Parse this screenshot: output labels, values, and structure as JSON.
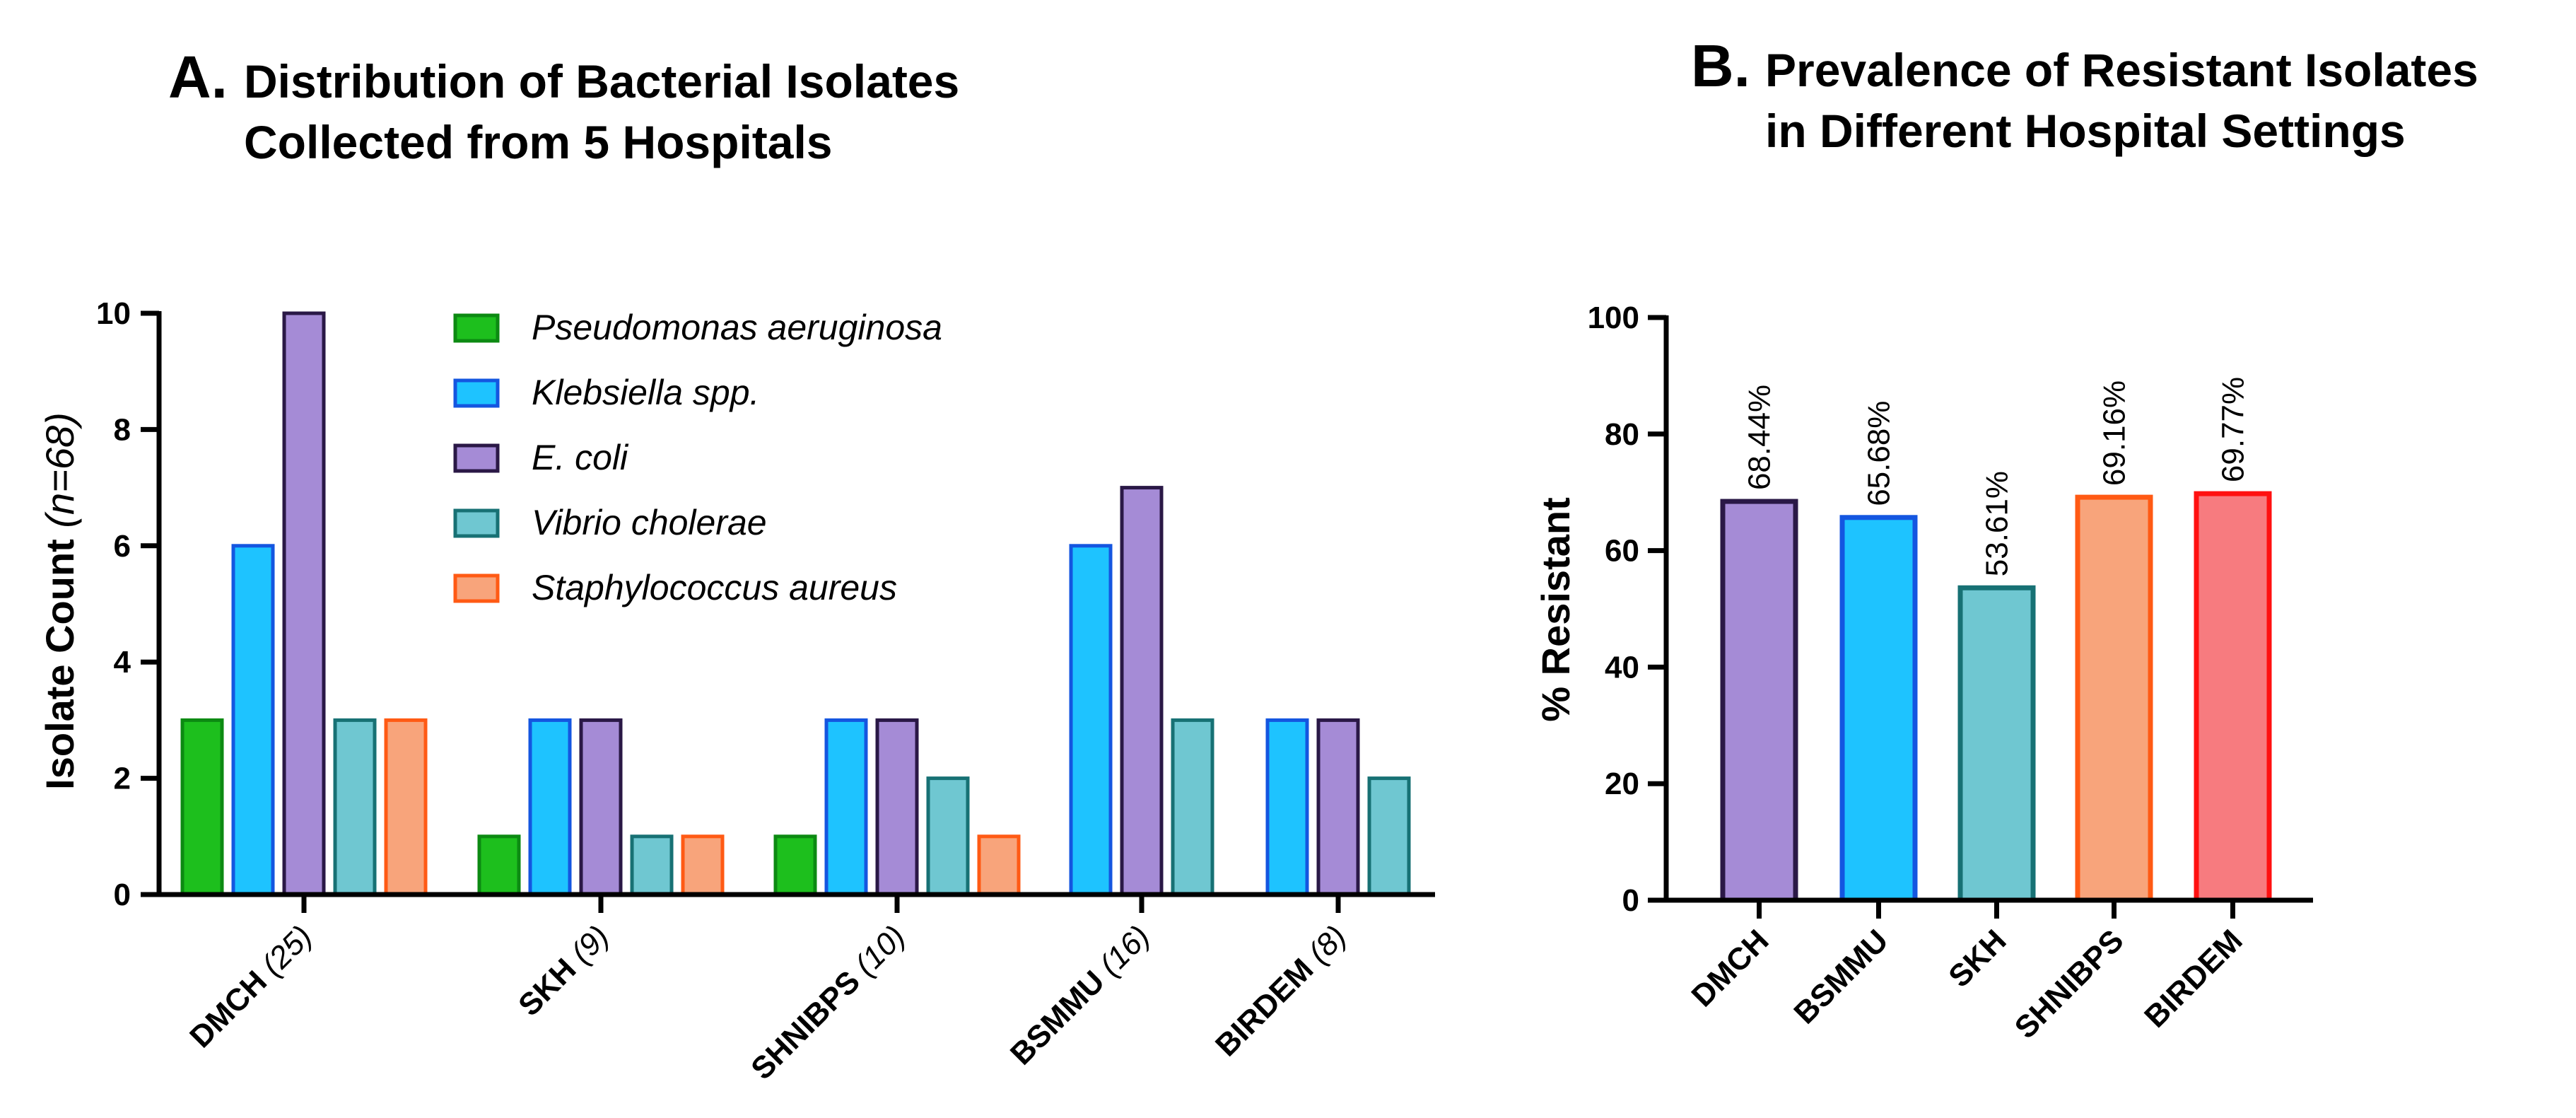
{
  "colors": {
    "Pseudomonas aeruginosa": {
      "fill": "#1dbf1d",
      "stroke": "#0c8a12"
    },
    "Klebsiella spp.": {
      "fill": "#1ec3ff",
      "stroke": "#1456e0"
    },
    "E. coli": {
      "fill": "#a58bd6",
      "stroke": "#2a1846"
    },
    "Vibrio cholerae": {
      "fill": "#6fc7d1",
      "stroke": "#177174"
    },
    "Staphylococcus aureus": {
      "fill": "#f8a47b",
      "stroke": "#ff5a14"
    }
  },
  "chart_data": [
    {
      "type": "bar",
      "panel_letter": "A.",
      "title_line1": "Distribution of Bacterial Isolates",
      "title_line2": "Collected from 5 Hospitals",
      "xlabel": "",
      "ylabel": "Isolate Count",
      "ylabel_n": "(n=68)",
      "ylim": [
        0,
        10
      ],
      "yticks": [
        0,
        2,
        4,
        6,
        8,
        10
      ],
      "categories": [
        {
          "name": "DMCH",
          "n": "(25)"
        },
        {
          "name": "SKH",
          "n": "(9)"
        },
        {
          "name": "SHNIBPS",
          "n": "(10)"
        },
        {
          "name": "BSMMU",
          "n": "(16)"
        },
        {
          "name": "BIRDEM",
          "n": "(8)"
        }
      ],
      "legend_position": "top-center",
      "series": [
        {
          "name": "Pseudomonas aeruginosa",
          "values": [
            3,
            1,
            1,
            0,
            0
          ]
        },
        {
          "name": "Klebsiella spp.",
          "values": [
            6,
            3,
            3,
            6,
            3
          ]
        },
        {
          "name": "E. coli",
          "values": [
            10,
            3,
            3,
            7,
            3
          ]
        },
        {
          "name": "Vibrio cholerae",
          "values": [
            3,
            1,
            2,
            3,
            2
          ]
        },
        {
          "name": "Staphylococcus aureus",
          "values": [
            3,
            1,
            1,
            0,
            0
          ]
        }
      ]
    },
    {
      "type": "bar",
      "panel_letter": "B.",
      "title_line1": "Prevalence of Resistant Isolates",
      "title_line2": "in Different  Hospital  Settings",
      "xlabel": "",
      "ylabel": "% Resistant",
      "ylim": [
        0,
        100
      ],
      "yticks": [
        0,
        20,
        40,
        60,
        80,
        100
      ],
      "categories": [
        "DMCH",
        "BSMMU",
        "SKH",
        "SHNIBPS",
        "BIRDEM"
      ],
      "values": [
        68.44,
        65.68,
        53.61,
        69.16,
        69.77
      ],
      "data_labels": [
        "68.44%",
        "65.68%",
        "53.61%",
        "69.16%",
        "69.77%"
      ],
      "bar_colors": [
        {
          "fill": "#a58bd6",
          "stroke": "#2a1846"
        },
        {
          "fill": "#1ec3ff",
          "stroke": "#1456e0"
        },
        {
          "fill": "#6fc7d1",
          "stroke": "#177174"
        },
        {
          "fill": "#f8a47b",
          "stroke": "#ff5a14"
        },
        {
          "fill": "#f77b7f",
          "stroke": "#ff1010"
        }
      ]
    }
  ]
}
